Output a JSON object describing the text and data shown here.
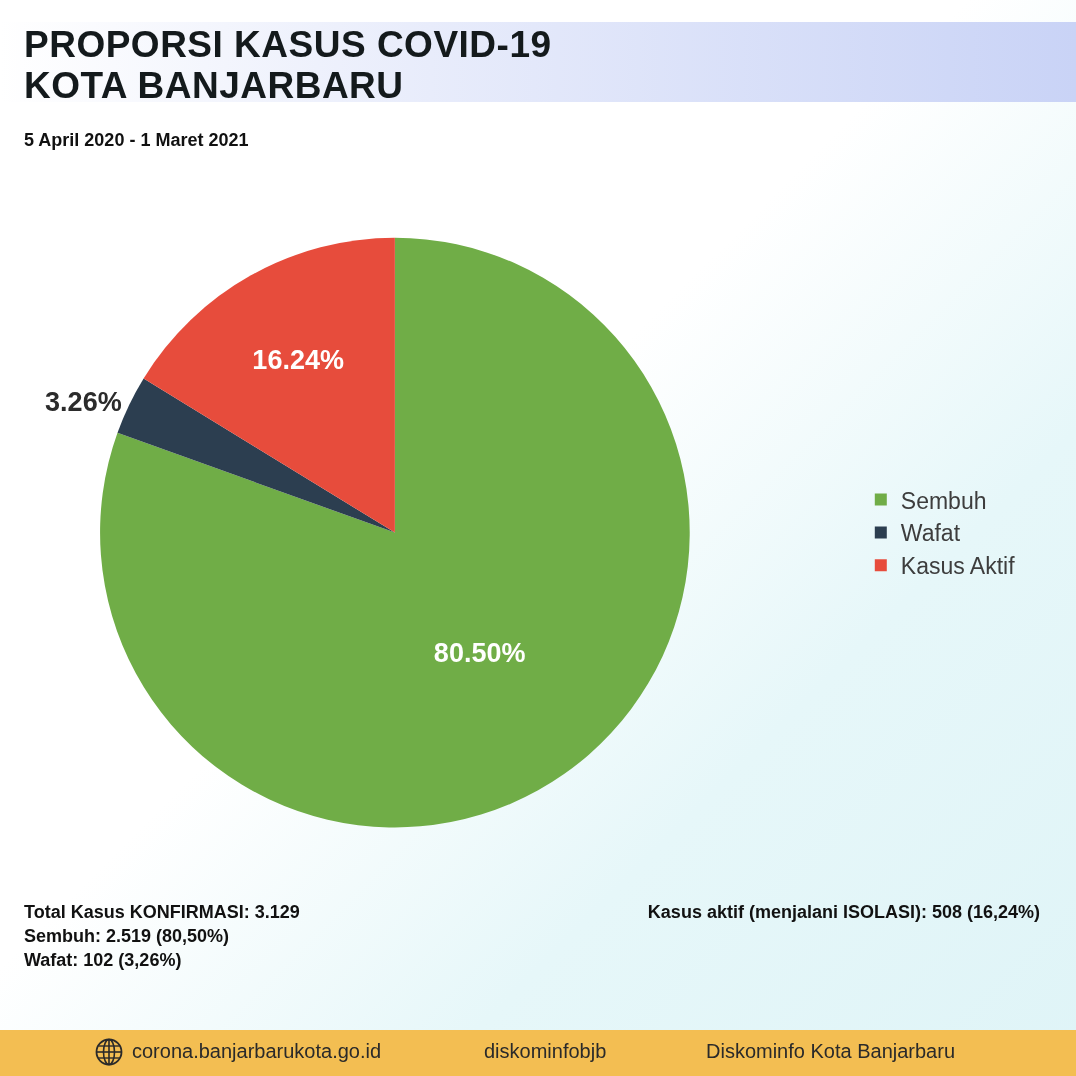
{
  "chart_data": {
    "type": "pie",
    "title": "PROPORSI KASUS COVID-19 KOTA BANJARBARU",
    "subtitle": "5 April 2020 - 1 Maret 2021",
    "categories": [
      "Sembuh",
      "Wafat",
      "Kasus Aktif"
    ],
    "values": [
      80.5,
      3.26,
      16.24
    ],
    "colors": [
      "#70ad47",
      "#2c3e50",
      "#e74c3c"
    ],
    "value_labels": [
      "80.50%",
      "3.26%",
      "16.24%"
    ],
    "legend": "right",
    "annotations": [
      "Total Kasus KONFIRMASI: 3.129",
      "Sembuh: 2.519 (80,50%)",
      "Wafat: 102 (3,26%)",
      "Kasus aktif (menjalani ISOLASI): 508 (16,24%)",
      "corona.banjarbarukota.go.id",
      "diskominfobjb",
      "Diskominfo Kota Banjarbaru"
    ]
  }
}
